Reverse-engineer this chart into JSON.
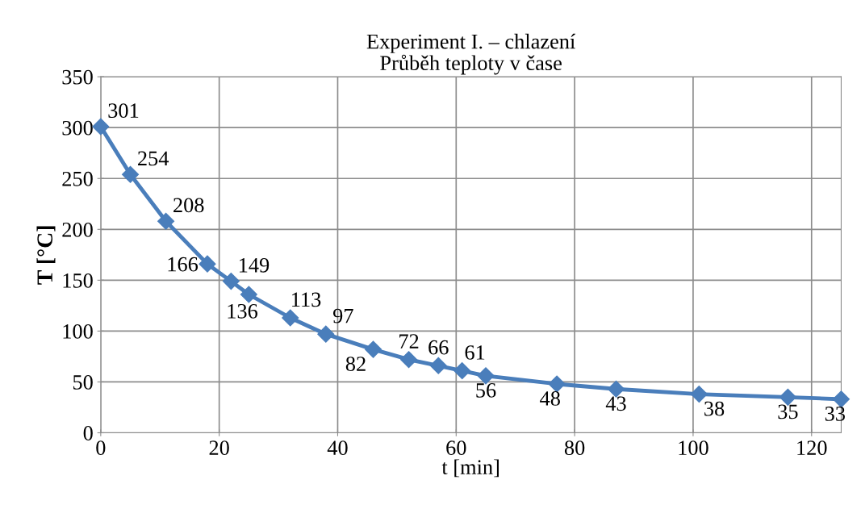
{
  "chart_data": {
    "type": "line",
    "title": "Experiment I. – chlazení\nPrůběh teploty v čase",
    "xlabel": "t [min]",
    "ylabel": "T [°C]",
    "x": [
      0,
      5,
      11,
      18,
      22,
      25,
      32,
      38,
      46,
      52,
      57,
      61,
      65,
      77,
      87,
      101,
      116,
      125
    ],
    "series": [
      {
        "color": "#4a7ebb",
        "values": [
          301,
          254,
          208,
          166,
          149,
          136,
          113,
          97,
          82,
          72,
          66,
          61,
          56,
          48,
          43,
          38,
          35,
          33
        ]
      }
    ],
    "xlim": [
      0,
      125
    ],
    "xticks": [
      0,
      20,
      40,
      60,
      80,
      100,
      120
    ],
    "ylim": [
      0,
      350
    ],
    "yticks": [
      0,
      50,
      100,
      150,
      200,
      250,
      300,
      350
    ],
    "grid": true,
    "marker": "diamond",
    "line_style": "solid",
    "data_labels": true
  }
}
